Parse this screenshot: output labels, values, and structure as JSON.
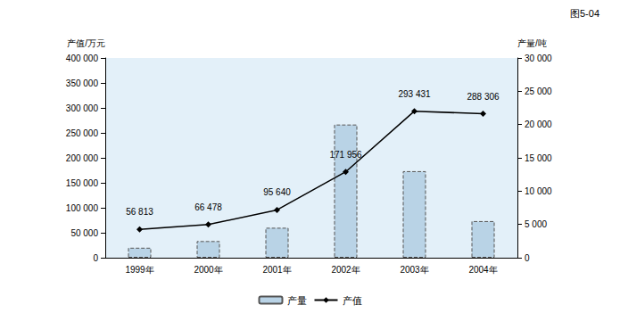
{
  "chart_data": {
    "type": "line",
    "title": "图5-04",
    "y_label": "产值/万元",
    "y2_label": "产量/吨",
    "categories": [
      "1999年",
      "2000年",
      "2001年",
      "2002年",
      "2003年",
      "2004年"
    ],
    "series": [
      {
        "name": "产量",
        "type": "bar",
        "axis": "y2",
        "color": "#b9d3e6",
        "line_style": "dashed",
        "values": [
          1500,
          2500,
          4500,
          20000,
          13000,
          5500
        ]
      },
      {
        "name": "产值",
        "type": "line",
        "color": "#000000",
        "marker": "diamond",
        "data_labels": true,
        "values": [
          56813,
          66478,
          95640,
          171956,
          293431,
          288306
        ],
        "value_labels": [
          "56 813",
          "66 478",
          "95 640",
          "171 956",
          "293 431",
          "288 306"
        ]
      }
    ],
    "ylim": [
      0,
      400000
    ],
    "yticks": [
      0,
      {
        "value": 50000,
        "label": "50 000"
      },
      {
        "value": 100000,
        "label": "100 000"
      },
      {
        "value": 150000,
        "label": "150 000"
      },
      {
        "value": 200000,
        "label": "200 000"
      },
      {
        "value": 250000,
        "label": "250 000"
      },
      {
        "value": 300000,
        "label": "300 000"
      },
      {
        "value": 350000,
        "label": "350 000"
      },
      {
        "value": 400000,
        "label": "400 000"
      }
    ],
    "y2lim": [
      0,
      30000
    ],
    "y2ticks": [
      0,
      {
        "value": 5000,
        "label": "5 000"
      },
      {
        "value": 10000,
        "label": "10 000"
      },
      {
        "value": 15000,
        "label": "15 000"
      },
      {
        "value": 20000,
        "label": "20 000"
      },
      {
        "value": 25000,
        "label": "25 000"
      },
      {
        "value": 30000,
        "label": "30 000"
      }
    ],
    "grid": false,
    "legend": "bottom"
  }
}
